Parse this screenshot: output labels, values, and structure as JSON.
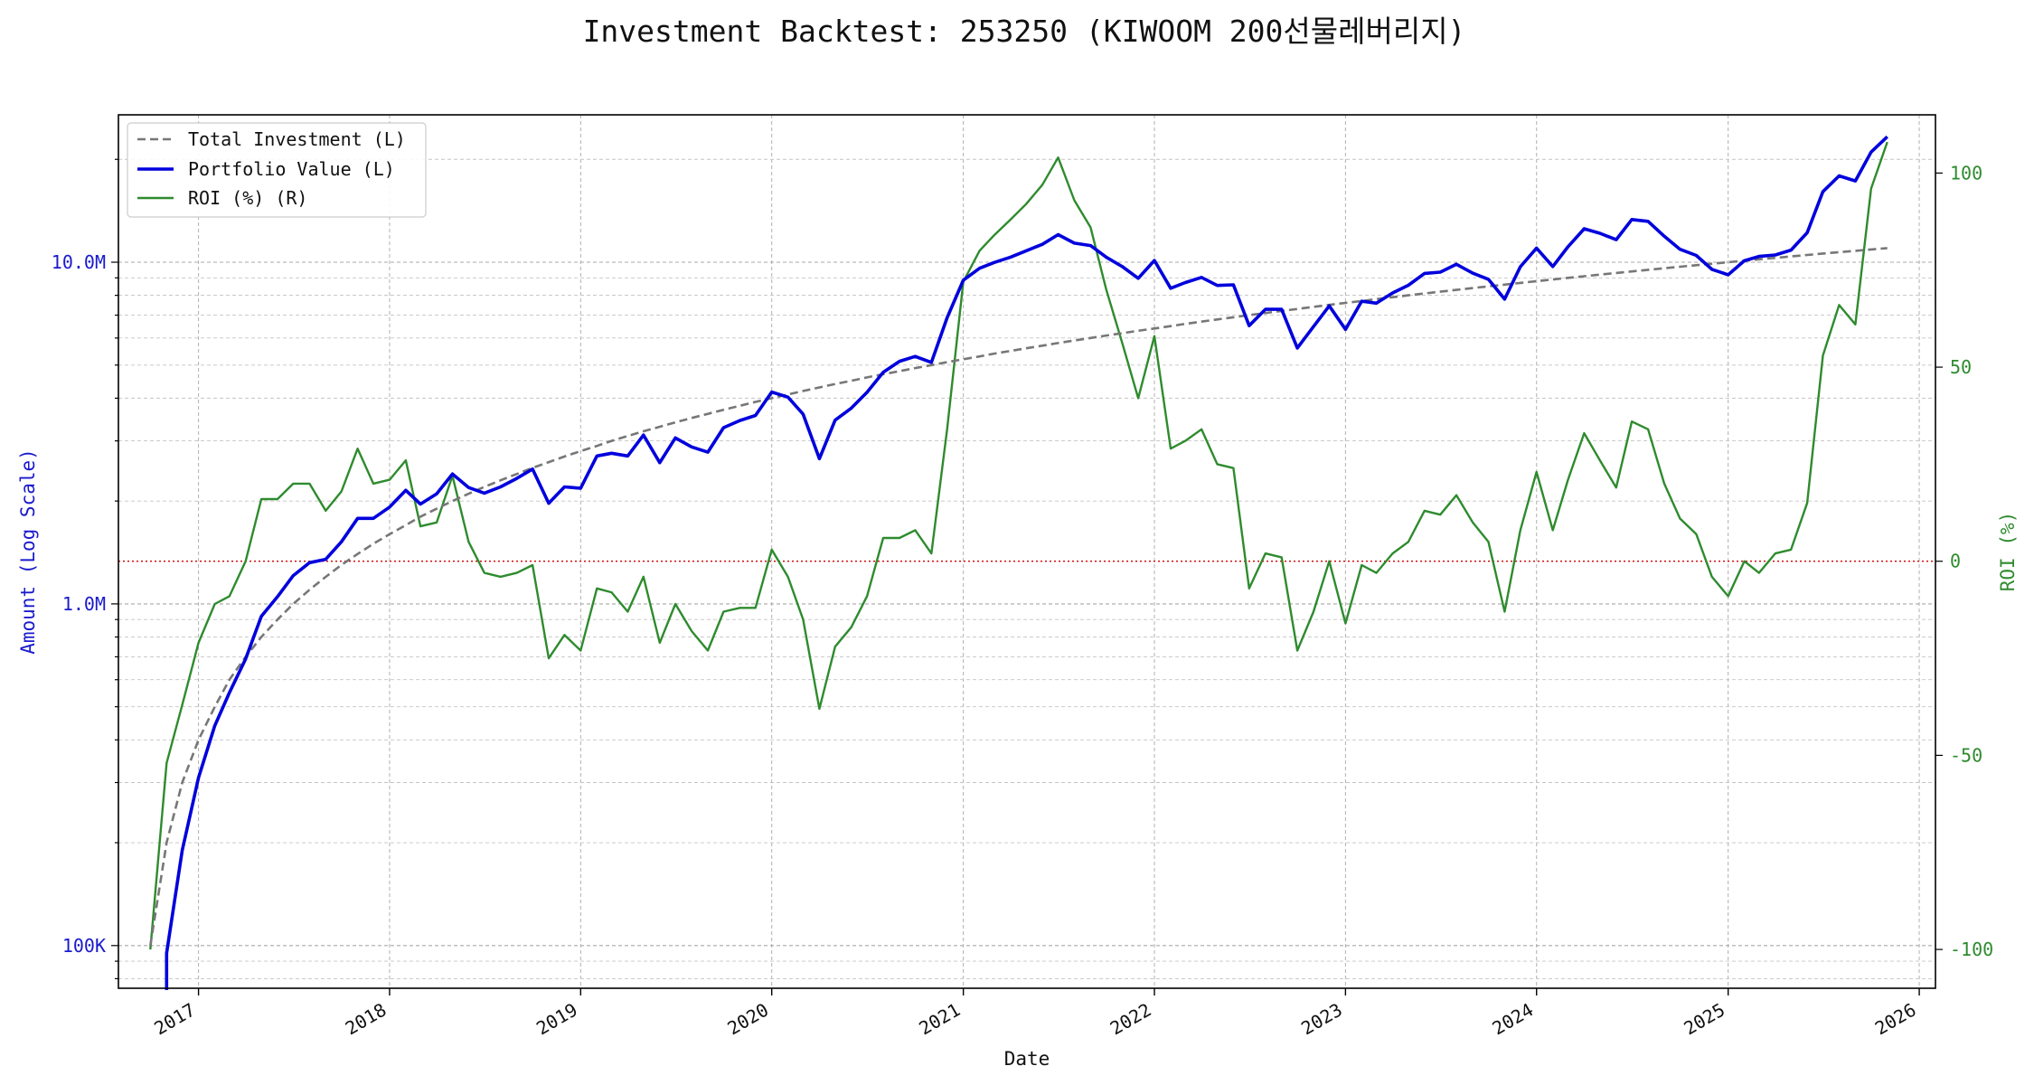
{
  "chart_data": {
    "type": "line",
    "title": "Investment Backtest: 253250 (KIWOOM 200선물레버리지)",
    "xlabel": "Date",
    "ylabel_left": "Amount (Log Scale)",
    "ylabel_right": "ROI (%)",
    "left_scale": "log",
    "left_ylim": [
      75000,
      27000000
    ],
    "right_ylim": [
      -110,
      115
    ],
    "xlim": [
      "2016-08-01",
      "2026-02-01"
    ],
    "x_ticks": [
      "2017",
      "2018",
      "2019",
      "2020",
      "2021",
      "2022",
      "2023",
      "2024",
      "2025",
      "2026"
    ],
    "left_ticks": [
      {
        "value": 100000,
        "label": "100K"
      },
      {
        "value": 1000000,
        "label": "1.0M"
      },
      {
        "value": 10000000,
        "label": "10.0M"
      }
    ],
    "right_ticks": [
      -100,
      -50,
      0,
      50,
      100
    ],
    "grid": true,
    "legend_position": "top-left",
    "zero_line": {
      "value": 0,
      "color": "#cc0000",
      "style": "dotted"
    },
    "colors": {
      "total_investment": "#777777",
      "portfolio_value": "#0000dd",
      "roi": "#2e8b2e",
      "left_axis": "#1a1acc",
      "right_axis": "#2e8b2e"
    },
    "dates": [
      "2016-10",
      "2016-11",
      "2016-12",
      "2017-01",
      "2017-02",
      "2017-03",
      "2017-04",
      "2017-05",
      "2017-06",
      "2017-07",
      "2017-08",
      "2017-09",
      "2017-10",
      "2017-11",
      "2017-12",
      "2018-01",
      "2018-02",
      "2018-03",
      "2018-04",
      "2018-05",
      "2018-06",
      "2018-07",
      "2018-08",
      "2018-09",
      "2018-10",
      "2018-11",
      "2018-12",
      "2019-01",
      "2019-02",
      "2019-03",
      "2019-04",
      "2019-05",
      "2019-06",
      "2019-07",
      "2019-08",
      "2019-09",
      "2019-10",
      "2019-11",
      "2019-12",
      "2020-01",
      "2020-02",
      "2020-03",
      "2020-04",
      "2020-05",
      "2020-06",
      "2020-07",
      "2020-08",
      "2020-09",
      "2020-10",
      "2020-11",
      "2020-12",
      "2021-01",
      "2021-02",
      "2021-03",
      "2021-04",
      "2021-05",
      "2021-06",
      "2021-07",
      "2021-08",
      "2021-09",
      "2021-10",
      "2021-11",
      "2021-12",
      "2022-01",
      "2022-02",
      "2022-03",
      "2022-04",
      "2022-05",
      "2022-06",
      "2022-07",
      "2022-08",
      "2022-09",
      "2022-10",
      "2022-11",
      "2022-12",
      "2023-01",
      "2023-02",
      "2023-03",
      "2023-04",
      "2023-05",
      "2023-06",
      "2023-07",
      "2023-08",
      "2023-09",
      "2023-10",
      "2023-11",
      "2023-12",
      "2024-01",
      "2024-02",
      "2024-03",
      "2024-04",
      "2024-05",
      "2024-06",
      "2024-07",
      "2024-08",
      "2024-09",
      "2024-10",
      "2024-11",
      "2024-12",
      "2025-01",
      "2025-02",
      "2025-03",
      "2025-04",
      "2025-05",
      "2025-06",
      "2025-07",
      "2025-08",
      "2025-09",
      "2025-10",
      "2025-11"
    ],
    "series": [
      {
        "name": "Total Investment (L)",
        "axis": "left",
        "style": "dashed",
        "values": [
          100000,
          200000,
          300000,
          400000,
          500000,
          600000,
          700000,
          800000,
          900000,
          1000000,
          1100000,
          1200000,
          1300000,
          1400000,
          1500000,
          1600000,
          1700000,
          1800000,
          1900000,
          2000000,
          2100000,
          2200000,
          2300000,
          2400000,
          2500000,
          2600000,
          2700000,
          2800000,
          2900000,
          3000000,
          3100000,
          3200000,
          3300000,
          3400000,
          3500000,
          3600000,
          3700000,
          3800000,
          3900000,
          4000000,
          4100000,
          4200000,
          4300000,
          4400000,
          4500000,
          4600000,
          4700000,
          4800000,
          4900000,
          5000000,
          5100000,
          5200000,
          5300000,
          5400000,
          5500000,
          5600000,
          5700000,
          5800000,
          5900000,
          6000000,
          6100000,
          6200000,
          6300000,
          6400000,
          6500000,
          6600000,
          6700000,
          6800000,
          6900000,
          7000000,
          7100000,
          7200000,
          7300000,
          7400000,
          7500000,
          7600000,
          7700000,
          7800000,
          7900000,
          8000000,
          8100000,
          8200000,
          8300000,
          8400000,
          8500000,
          8600000,
          8700000,
          8800000,
          8900000,
          9000000,
          9100000,
          9200000,
          9300000,
          9400000,
          9500000,
          9600000,
          9700000,
          9800000,
          9900000,
          10000000,
          10100000,
          10200000,
          10300000,
          10400000,
          10500000,
          10600000,
          10700000,
          10800000,
          10900000,
          11000000
        ]
      },
      {
        "name": "Portfolio Value (L)",
        "axis": "left",
        "style": "solid",
        "values": [
          null,
          95000,
          190000,
          310000,
          440000,
          550000,
          690000,
          920000,
          1050000,
          1210000,
          1320000,
          1350000,
          1520000,
          1780000,
          1780000,
          1920000,
          2150000,
          1960000,
          2100000,
          2400000,
          2190000,
          2110000,
          2200000,
          2330000,
          2480000,
          1970000,
          2200000,
          2180000,
          2710000,
          2760000,
          2710000,
          3120000,
          2590000,
          3060000,
          2880000,
          2780000,
          3280000,
          3440000,
          3560000,
          4170000,
          4030000,
          3590000,
          2660000,
          3450000,
          3740000,
          4160000,
          4760000,
          5130000,
          5300000,
          5090000,
          6880000,
          8860000,
          9600000,
          9980000,
          10350000,
          10800000,
          11280000,
          12040000,
          11370000,
          11190000,
          10350000,
          9700000,
          8970000,
          10120000,
          8390000,
          8720000,
          9030000,
          8550000,
          8590000,
          6520000,
          7280000,
          7280000,
          5610000,
          6480000,
          7450000,
          6360000,
          7690000,
          7590000,
          8130000,
          8560000,
          9270000,
          9350000,
          9860000,
          9290000,
          8910000,
          7800000,
          9700000,
          11000000,
          9710000,
          11100000,
          12530000,
          12150000,
          11640000,
          13330000,
          13170000,
          11910000,
          10910000,
          10470000,
          9530000,
          9190000,
          10100000,
          10400000,
          10500000,
          10850000,
          12200000,
          16100000,
          17900000,
          17300000,
          21000000,
          23300000
        ]
      },
      {
        "name": "ROI (%) (R)",
        "axis": "right",
        "style": "solid",
        "values": [
          -100,
          -52,
          -37,
          -21,
          -11,
          -9,
          0,
          16,
          16,
          20,
          20,
          13,
          18,
          29,
          20,
          21,
          26,
          9,
          10,
          22,
          5,
          -3,
          -4,
          -3,
          -1,
          -25,
          -19,
          -23,
          -7,
          -8,
          -13,
          -4,
          -21,
          -11,
          -18,
          -23,
          -13,
          -12,
          -12,
          3,
          -4,
          -15,
          -38,
          -22,
          -17,
          -9,
          6,
          6,
          8,
          2,
          34,
          72,
          80,
          84,
          88,
          92,
          97,
          104,
          93,
          86,
          70,
          56,
          42,
          58,
          29,
          31,
          34,
          25,
          24,
          -7,
          2,
          1,
          -23,
          -13,
          0,
          -16,
          -1,
          -3,
          2,
          5,
          13,
          12,
          17,
          10,
          5,
          -13,
          8,
          23,
          8,
          21,
          33,
          26,
          19,
          36,
          34,
          20,
          11,
          7,
          -4,
          -9,
          0,
          -3,
          2,
          3,
          15,
          53,
          66,
          61,
          96,
          108
        ]
      }
    ]
  }
}
